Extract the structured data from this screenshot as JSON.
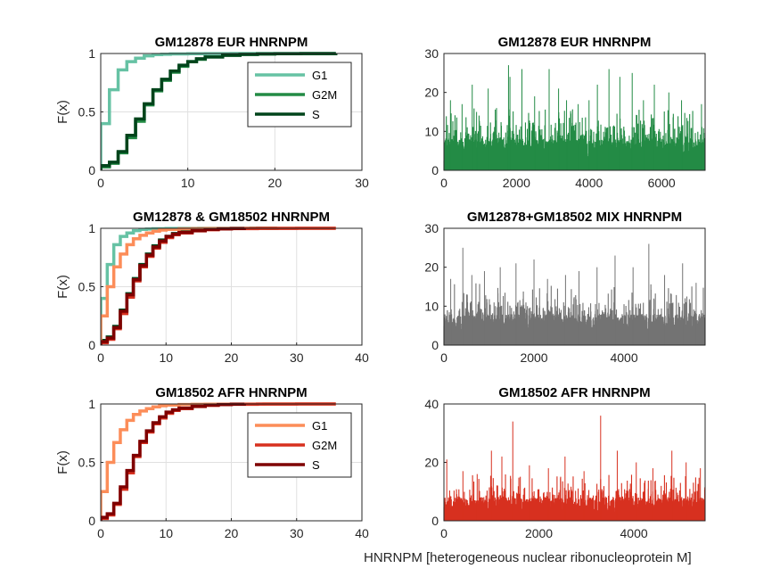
{
  "figure": {
    "xlabel": "HNRNPM [heterogeneous nuclear ribonucleoprotein M]"
  },
  "chart_data": [
    {
      "type": "line",
      "subtype": "ecdf-stairs",
      "title": "GM12878 EUR HNRNPM",
      "ylabel": "F(x)",
      "xlim": [
        0,
        30
      ],
      "ylim": [
        0,
        1
      ],
      "xticks": [
        "0",
        "10",
        "20",
        "30"
      ],
      "yticks": [
        "0",
        "0.5",
        "1"
      ],
      "grid": true,
      "legend": "top-right",
      "series": [
        {
          "name": "G1",
          "color": "#66c2a4",
          "x": [
            0,
            1,
            2,
            3,
            4,
            5,
            6,
            7,
            8,
            10,
            12,
            15,
            20,
            27
          ],
          "y": [
            0.4,
            0.69,
            0.86,
            0.93,
            0.96,
            0.98,
            0.99,
            0.993,
            0.996,
            0.998,
            0.999,
            1,
            1,
            1
          ]
        },
        {
          "name": "G2M",
          "color": "#238b45",
          "x": [
            0,
            1,
            2,
            3,
            4,
            5,
            6,
            7,
            8,
            9,
            10,
            11,
            12,
            14,
            16,
            18,
            20,
            23,
            27
          ],
          "y": [
            0.03,
            0.06,
            0.15,
            0.28,
            0.42,
            0.56,
            0.68,
            0.77,
            0.84,
            0.89,
            0.93,
            0.95,
            0.97,
            0.985,
            0.992,
            0.996,
            0.998,
            0.999,
            1
          ]
        },
        {
          "name": "S",
          "color": "#00441b",
          "x": [
            0,
            1,
            2,
            3,
            4,
            5,
            6,
            7,
            8,
            9,
            10,
            11,
            12,
            14,
            16,
            18,
            20,
            23,
            27
          ],
          "y": [
            0.04,
            0.07,
            0.16,
            0.3,
            0.44,
            0.57,
            0.69,
            0.78,
            0.85,
            0.9,
            0.93,
            0.955,
            0.97,
            0.985,
            0.992,
            0.996,
            0.998,
            0.999,
            1
          ]
        }
      ]
    },
    {
      "type": "bar",
      "title": "GM12878 EUR HNRNPM",
      "xlim": [
        0,
        7200
      ],
      "ylim": [
        0,
        30
      ],
      "xticks": [
        "0",
        "2000",
        "4000",
        "6000"
      ],
      "yticks": [
        "0",
        "10",
        "20",
        "30"
      ],
      "n": 7200,
      "color": "#238b45",
      "peaks": [
        [
          180,
          18
        ],
        [
          500,
          17
        ],
        [
          780,
          22
        ],
        [
          900,
          15
        ],
        [
          1220,
          21
        ],
        [
          1450,
          16
        ],
        [
          1780,
          27
        ],
        [
          1820,
          24
        ],
        [
          2150,
          26
        ],
        [
          2500,
          19
        ],
        [
          2900,
          26
        ],
        [
          3160,
          21
        ],
        [
          3380,
          18
        ],
        [
          3700,
          17
        ],
        [
          4000,
          18
        ],
        [
          4230,
          22
        ],
        [
          4550,
          26
        ],
        [
          4850,
          24
        ],
        [
          5190,
          25
        ],
        [
          5500,
          18
        ],
        [
          5800,
          22
        ],
        [
          6200,
          20
        ],
        [
          6550,
          18
        ],
        [
          7100,
          17
        ]
      ]
    },
    {
      "type": "line",
      "subtype": "ecdf-stairs",
      "title": "GM12878 & GM18502 HNRNPM",
      "ylabel": "F(x)",
      "xlim": [
        0,
        40
      ],
      "ylim": [
        0,
        1
      ],
      "xticks": [
        "0",
        "10",
        "20",
        "30",
        "40"
      ],
      "yticks": [
        "0",
        "0.5",
        "1"
      ],
      "grid": true,
      "series": [
        {
          "color": "#66c2a4",
          "x": [
            0,
            1,
            2,
            3,
            4,
            5,
            6,
            7,
            8,
            10,
            12,
            15,
            20,
            27
          ],
          "y": [
            0.4,
            0.69,
            0.86,
            0.93,
            0.96,
            0.98,
            0.99,
            0.993,
            0.996,
            0.998,
            0.999,
            1,
            1,
            1
          ]
        },
        {
          "color": "#238b45",
          "x": [
            0,
            1,
            2,
            3,
            4,
            5,
            6,
            7,
            8,
            9,
            10,
            11,
            12,
            14,
            16,
            18,
            20,
            23,
            27
          ],
          "y": [
            0.03,
            0.06,
            0.15,
            0.28,
            0.42,
            0.56,
            0.68,
            0.77,
            0.84,
            0.89,
            0.93,
            0.95,
            0.97,
            0.985,
            0.992,
            0.996,
            0.998,
            0.999,
            1
          ]
        },
        {
          "color": "#00441b",
          "x": [
            0,
            1,
            2,
            3,
            4,
            5,
            6,
            7,
            8,
            9,
            10,
            11,
            12,
            14,
            16,
            18,
            20,
            23,
            27
          ],
          "y": [
            0.04,
            0.07,
            0.16,
            0.3,
            0.44,
            0.57,
            0.69,
            0.78,
            0.85,
            0.9,
            0.93,
            0.955,
            0.97,
            0.985,
            0.992,
            0.996,
            0.998,
            0.999,
            1
          ]
        },
        {
          "color": "#fc8d59",
          "x": [
            0,
            1,
            2,
            3,
            4,
            5,
            6,
            7,
            8,
            9,
            10,
            12,
            14,
            16,
            20,
            25,
            30,
            36
          ],
          "y": [
            0.25,
            0.5,
            0.67,
            0.78,
            0.86,
            0.91,
            0.94,
            0.96,
            0.975,
            0.985,
            0.99,
            0.995,
            0.997,
            0.998,
            0.999,
            1,
            1,
            1
          ]
        },
        {
          "color": "#d7301f",
          "x": [
            0,
            1,
            2,
            3,
            4,
            5,
            6,
            7,
            8,
            9,
            10,
            11,
            12,
            14,
            16,
            18,
            20,
            24,
            30,
            36
          ],
          "y": [
            0.02,
            0.05,
            0.14,
            0.27,
            0.41,
            0.55,
            0.67,
            0.76,
            0.83,
            0.88,
            0.92,
            0.945,
            0.96,
            0.978,
            0.988,
            0.994,
            0.997,
            0.999,
            1,
            1
          ]
        },
        {
          "color": "#7f0000",
          "x": [
            0,
            1,
            2,
            3,
            4,
            5,
            6,
            7,
            8,
            9,
            10,
            11,
            12,
            14,
            16,
            18,
            20,
            22
          ],
          "y": [
            0.03,
            0.06,
            0.15,
            0.29,
            0.43,
            0.56,
            0.68,
            0.77,
            0.84,
            0.89,
            0.93,
            0.95,
            0.965,
            0.98,
            0.99,
            0.995,
            0.998,
            1
          ]
        }
      ]
    },
    {
      "type": "bar",
      "title": "GM12878+GM18502 MIX HNRNPM",
      "xlim": [
        0,
        5800
      ],
      "ylim": [
        0,
        30
      ],
      "xticks": [
        "0",
        "2000",
        "4000"
      ],
      "yticks": [
        "0",
        "10",
        "20",
        "30"
      ],
      "n": 5800,
      "color": "#737373",
      "peaks": [
        [
          150,
          17
        ],
        [
          420,
          25
        ],
        [
          620,
          18
        ],
        [
          900,
          19
        ],
        [
          1250,
          20
        ],
        [
          1600,
          21
        ],
        [
          2000,
          22
        ],
        [
          2300,
          17
        ],
        [
          2700,
          18
        ],
        [
          3000,
          19
        ],
        [
          3400,
          20
        ],
        [
          3800,
          23
        ],
        [
          4200,
          20
        ],
        [
          4550,
          26
        ],
        [
          4900,
          18
        ],
        [
          5300,
          21
        ],
        [
          5600,
          16
        ]
      ]
    },
    {
      "type": "line",
      "subtype": "ecdf-stairs",
      "title": "GM18502 AFR HNRNPM",
      "ylabel": "F(x)",
      "xlim": [
        0,
        40
      ],
      "ylim": [
        0,
        1
      ],
      "xticks": [
        "0",
        "10",
        "20",
        "30",
        "40"
      ],
      "yticks": [
        "0",
        "0.5",
        "1"
      ],
      "grid": true,
      "legend": "top-right",
      "series": [
        {
          "name": "G1",
          "color": "#fc8d59",
          "x": [
            0,
            1,
            2,
            3,
            4,
            5,
            6,
            7,
            8,
            9,
            10,
            12,
            14,
            16,
            20,
            25,
            30,
            36
          ],
          "y": [
            0.25,
            0.5,
            0.67,
            0.78,
            0.86,
            0.91,
            0.94,
            0.96,
            0.975,
            0.985,
            0.99,
            0.995,
            0.997,
            0.998,
            0.999,
            1,
            1,
            1
          ]
        },
        {
          "name": "G2M",
          "color": "#d7301f",
          "x": [
            0,
            1,
            2,
            3,
            4,
            5,
            6,
            7,
            8,
            9,
            10,
            11,
            12,
            14,
            16,
            18,
            20,
            24,
            30,
            36
          ],
          "y": [
            0.02,
            0.05,
            0.14,
            0.27,
            0.41,
            0.55,
            0.67,
            0.76,
            0.83,
            0.88,
            0.92,
            0.945,
            0.96,
            0.978,
            0.988,
            0.994,
            0.997,
            0.999,
            1,
            1
          ]
        },
        {
          "name": "S",
          "color": "#7f0000",
          "x": [
            0,
            1,
            2,
            3,
            4,
            5,
            6,
            7,
            8,
            9,
            10,
            11,
            12,
            14,
            16,
            18,
            20,
            22
          ],
          "y": [
            0.03,
            0.06,
            0.15,
            0.29,
            0.43,
            0.56,
            0.68,
            0.77,
            0.84,
            0.89,
            0.93,
            0.95,
            0.965,
            0.98,
            0.99,
            0.995,
            0.998,
            1
          ]
        }
      ]
    },
    {
      "type": "bar",
      "title": "GM18502 AFR HNRNPM",
      "xlim": [
        0,
        5500
      ],
      "ylim": [
        0,
        40
      ],
      "xticks": [
        "0",
        "2000",
        "4000"
      ],
      "yticks": [
        "0",
        "20",
        "40"
      ],
      "n": 5500,
      "color": "#d7301f",
      "peaks": [
        [
          60,
          21
        ],
        [
          400,
          17
        ],
        [
          700,
          16
        ],
        [
          1000,
          24
        ],
        [
          1220,
          22
        ],
        [
          1450,
          34
        ],
        [
          1800,
          19
        ],
        [
          2200,
          18
        ],
        [
          2550,
          22
        ],
        [
          2950,
          17
        ],
        [
          3300,
          36
        ],
        [
          3650,
          24
        ],
        [
          4050,
          20
        ],
        [
          4400,
          18
        ],
        [
          4800,
          24
        ],
        [
          5100,
          20
        ],
        [
          5400,
          18
        ]
      ]
    }
  ]
}
